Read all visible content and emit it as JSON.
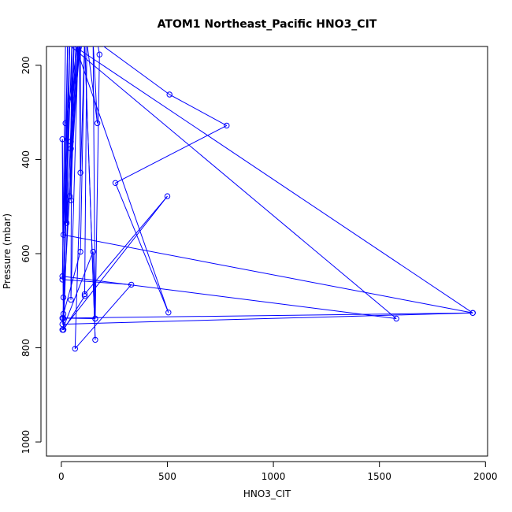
{
  "chart_data": {
    "type": "scatter",
    "title": "ATOM1 Northeast_Pacific HNO3_CIT",
    "xlabel": "HNO3_CIT",
    "ylabel": "Pressure (mbar)",
    "xlim": [
      -70,
      2010
    ],
    "ylim": [
      1030,
      160
    ],
    "y_reversed": true,
    "x_ticks": [
      0,
      500,
      1000,
      1500,
      2000
    ],
    "y_ticks": [
      200,
      400,
      600,
      800,
      1000
    ],
    "grid": false,
    "legend": "none",
    "series": [
      {
        "line_color": "#0000ff",
        "marker": "open-circle",
        "points": [
          {
            "x": 100,
            "y": 150
          },
          {
            "x": 20,
            "y": 323
          },
          {
            "x": 80,
            "y": 150
          },
          {
            "x": 45,
            "y": 362
          },
          {
            "x": 50,
            "y": 150
          },
          {
            "x": 45,
            "y": 377
          },
          {
            "x": 90,
            "y": 150
          },
          {
            "x": 90,
            "y": 428
          },
          {
            "x": 85,
            "y": 150
          },
          {
            "x": 40,
            "y": 478
          },
          {
            "x": 60,
            "y": 150
          },
          {
            "x": 45,
            "y": 487
          },
          {
            "x": 70,
            "y": 150
          },
          {
            "x": 25,
            "y": 535
          },
          {
            "x": 40,
            "y": 150
          },
          {
            "x": 10,
            "y": 560
          },
          {
            "x": 1940,
            "y": 726
          },
          {
            "x": 30,
            "y": 150
          },
          {
            "x": 5,
            "y": 648
          },
          {
            "x": 1580,
            "y": 738
          },
          {
            "x": 20,
            "y": 150
          },
          {
            "x": 5,
            "y": 655
          },
          {
            "x": 330,
            "y": 666
          },
          {
            "x": 65,
            "y": 802
          },
          {
            "x": 110,
            "y": 150
          },
          {
            "x": 160,
            "y": 783
          },
          {
            "x": 110,
            "y": 150
          },
          {
            "x": 90,
            "y": 596
          },
          {
            "x": 5,
            "y": 737
          },
          {
            "x": 160,
            "y": 738
          },
          {
            "x": 150,
            "y": 150
          },
          {
            "x": 170,
            "y": 323
          },
          {
            "x": 120,
            "y": 150
          },
          {
            "x": 110,
            "y": 686
          },
          {
            "x": 500,
            "y": 478
          },
          {
            "x": 5,
            "y": 762
          },
          {
            "x": 150,
            "y": 596
          },
          {
            "x": 160,
            "y": 738
          },
          {
            "x": 180,
            "y": 177
          },
          {
            "x": 170,
            "y": 150
          },
          {
            "x": 510,
            "y": 262
          },
          {
            "x": 780,
            "y": 328
          },
          {
            "x": 255,
            "y": 450
          },
          {
            "x": 505,
            "y": 725
          },
          {
            "x": 60,
            "y": 150
          },
          {
            "x": 10,
            "y": 762
          },
          {
            "x": 30,
            "y": 150
          },
          {
            "x": 10,
            "y": 728
          },
          {
            "x": 40,
            "y": 150
          },
          {
            "x": 10,
            "y": 693
          },
          {
            "x": 50,
            "y": 150
          },
          {
            "x": 45,
            "y": 698
          },
          {
            "x": 80,
            "y": 150
          },
          {
            "x": 5,
            "y": 750
          },
          {
            "x": 1940,
            "y": 726
          },
          {
            "x": 10,
            "y": 737
          },
          {
            "x": 5,
            "y": 357
          },
          {
            "x": 10,
            "y": 762
          },
          {
            "x": 110,
            "y": 690
          }
        ]
      }
    ]
  }
}
